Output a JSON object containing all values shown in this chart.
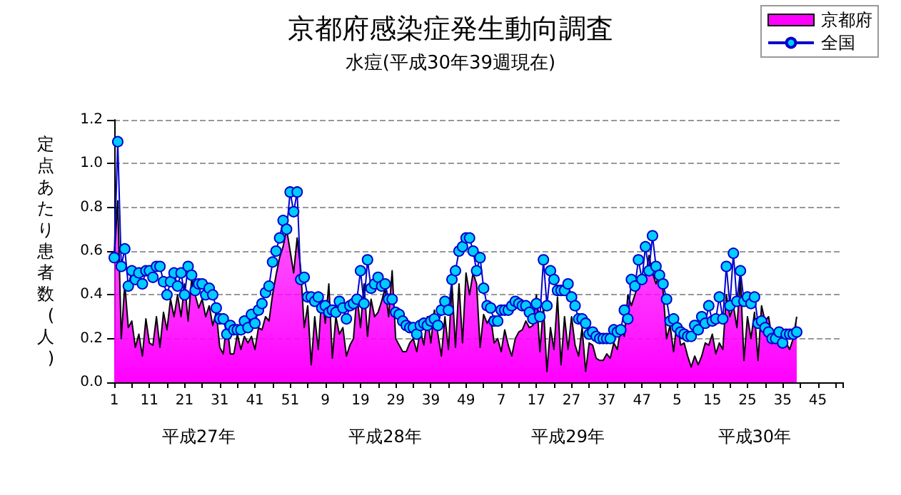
{
  "chart_data": {
    "type": "area",
    "title": "京都府感染症発生動向調査",
    "subtitle": "水痘(平成30年39週現在)",
    "ylabel": "定点あたり患者数(人)",
    "annotations": [
      "平成27年",
      "平成28年",
      "平成29年",
      "平成30年"
    ],
    "categories": [
      "1",
      null,
      null,
      null,
      null,
      null,
      null,
      null,
      null,
      null,
      "11",
      null,
      null,
      null,
      null,
      null,
      null,
      null,
      null,
      null,
      "21",
      null,
      null,
      null,
      null,
      null,
      null,
      null,
      null,
      null,
      "31",
      null,
      null,
      null,
      null,
      null,
      null,
      null,
      null,
      null,
      "41",
      null,
      null,
      null,
      null,
      null,
      null,
      null,
      null,
      null,
      "51",
      null,
      null,
      null,
      null,
      null,
      null,
      null,
      null,
      null,
      "9",
      null,
      null,
      null,
      null,
      null,
      null,
      null,
      null,
      null,
      "19",
      null,
      null,
      null,
      null,
      null,
      null,
      null,
      null,
      null,
      "29",
      null,
      null,
      null,
      null,
      null,
      null,
      null,
      null,
      null,
      "39",
      null,
      null,
      null,
      null,
      null,
      null,
      null,
      null,
      null,
      "49",
      null,
      null,
      null,
      null,
      null,
      null,
      null,
      null,
      null,
      "7",
      null,
      null,
      null,
      null,
      null,
      null,
      null,
      null,
      null,
      "17",
      null,
      null,
      null,
      null,
      null,
      null,
      null,
      null,
      null,
      "27",
      null,
      null,
      null,
      null,
      null,
      null,
      null,
      null,
      null,
      "37",
      null,
      null,
      null,
      null,
      null,
      null,
      null,
      null,
      null,
      "47",
      null,
      null,
      null,
      null,
      null,
      null,
      null,
      null,
      null,
      "5",
      null,
      null,
      null,
      null,
      null,
      null,
      null,
      null,
      null,
      "15",
      null,
      null,
      null,
      null,
      null,
      null,
      null,
      null,
      null,
      "25",
      null,
      null,
      null,
      null,
      null,
      null,
      null,
      null,
      null,
      "35",
      null,
      null,
      null,
      null,
      null,
      null,
      null,
      null,
      null,
      "45",
      null,
      null,
      null,
      null,
      null,
      null,
      null
    ],
    "series": [
      {
        "name": "京都府",
        "color": "#ff00ff",
        "values": [
          0.57,
          0.83,
          0.2,
          0.45,
          0.25,
          0.28,
          0.16,
          0.22,
          0.12,
          0.29,
          0.18,
          0.17,
          0.3,
          0.16,
          0.32,
          0.24,
          0.38,
          0.3,
          0.4,
          0.3,
          0.45,
          0.28,
          0.47,
          0.4,
          0.34,
          0.38,
          0.3,
          0.35,
          0.26,
          0.32,
          0.16,
          0.13,
          0.28,
          0.13,
          0.13,
          0.22,
          0.15,
          0.21,
          0.18,
          0.21,
          0.15,
          0.25,
          0.24,
          0.3,
          0.28,
          0.4,
          0.49,
          0.57,
          0.62,
          0.7,
          0.6,
          0.5,
          0.66,
          0.52,
          0.25,
          0.35,
          0.08,
          0.3,
          0.15,
          0.4,
          0.27,
          0.45,
          0.11,
          0.3,
          0.22,
          0.25,
          0.12,
          0.17,
          0.2,
          0.4,
          0.25,
          0.45,
          0.21,
          0.38,
          0.3,
          0.32,
          0.37,
          0.43,
          0.3,
          0.51,
          0.2,
          0.17,
          0.14,
          0.14,
          0.18,
          0.2,
          0.14,
          0.24,
          0.17,
          0.3,
          0.18,
          0.33,
          0.22,
          0.12,
          0.3,
          0.15,
          0.45,
          0.16,
          0.45,
          0.18,
          0.5,
          0.4,
          0.5,
          0.45,
          0.16,
          0.31,
          0.27,
          0.3,
          0.18,
          0.2,
          0.14,
          0.24,
          0.17,
          0.12,
          0.2,
          0.23,
          0.24,
          0.28,
          0.25,
          0.26,
          0.4,
          0.14,
          0.35,
          0.05,
          0.25,
          0.15,
          0.39,
          0.08,
          0.3,
          0.15,
          0.3,
          0.17,
          0.12,
          0.25,
          0.05,
          0.18,
          0.17,
          0.11,
          0.1,
          0.1,
          0.13,
          0.11,
          0.18,
          0.15,
          0.25,
          0.21,
          0.4,
          0.35,
          0.4,
          0.45,
          0.47,
          0.48,
          0.58,
          0.5,
          0.45,
          0.5,
          0.42,
          0.2,
          0.26,
          0.14,
          0.28,
          0.17,
          0.18,
          0.12,
          0.07,
          0.12,
          0.08,
          0.12,
          0.18,
          0.17,
          0.22,
          0.13,
          0.18,
          0.15,
          0.4,
          0.3,
          0.35,
          0.25,
          0.48,
          0.1,
          0.3,
          0.2,
          0.32,
          0.1,
          0.35,
          0.28,
          0.3,
          0.2,
          0.23,
          0.25,
          0.2,
          0.18,
          0.15,
          0.2,
          0.3,
          null,
          null,
          null,
          null,
          null,
          null,
          null,
          null,
          null,
          null,
          null,
          null,
          null
        ]
      },
      {
        "name": "全国",
        "type": "line",
        "marker": "circle",
        "color": "#0000cc",
        "values": [
          0.57,
          1.1,
          0.53,
          0.61,
          0.44,
          0.51,
          0.47,
          0.5,
          0.45,
          0.51,
          0.51,
          0.48,
          0.53,
          0.53,
          0.46,
          0.4,
          0.46,
          0.5,
          0.44,
          0.5,
          0.4,
          0.53,
          0.49,
          0.42,
          0.45,
          0.45,
          0.4,
          0.43,
          0.4,
          0.34,
          0.29,
          0.29,
          0.22,
          0.26,
          0.24,
          0.24,
          0.24,
          0.28,
          0.25,
          0.31,
          0.27,
          0.33,
          0.36,
          0.41,
          0.44,
          0.55,
          0.6,
          0.66,
          0.74,
          0.7,
          0.87,
          0.78,
          0.87,
          0.47,
          0.48,
          0.39,
          0.39,
          0.37,
          0.39,
          0.34,
          0.35,
          0.32,
          0.33,
          0.32,
          0.37,
          0.34,
          0.29,
          0.35,
          0.36,
          0.38,
          0.51,
          0.36,
          0.56,
          0.43,
          0.45,
          0.48,
          0.44,
          0.45,
          0.38,
          0.38,
          0.32,
          0.31,
          0.28,
          0.26,
          0.25,
          0.25,
          0.22,
          0.26,
          0.27,
          0.26,
          0.28,
          0.29,
          0.26,
          0.33,
          0.37,
          0.33,
          0.47,
          0.51,
          0.6,
          0.62,
          0.66,
          0.66,
          0.6,
          0.51,
          0.57,
          0.43,
          0.35,
          0.34,
          0.28,
          0.28,
          0.33,
          0.33,
          0.33,
          0.35,
          0.37,
          0.36,
          0.35,
          0.35,
          0.32,
          0.29,
          0.36,
          0.3,
          0.56,
          0.35,
          0.51,
          0.47,
          0.42,
          0.42,
          0.42,
          0.45,
          0.39,
          0.35,
          0.29,
          0.29,
          0.27,
          0.22,
          0.23,
          0.21,
          0.2,
          0.2,
          0.2,
          0.2,
          0.24,
          0.23,
          0.24,
          0.33,
          0.29,
          0.47,
          0.44,
          0.56,
          0.47,
          0.62,
          0.51,
          0.67,
          0.53,
          0.49,
          0.45,
          0.38,
          0.28,
          0.29,
          0.25,
          0.23,
          0.22,
          0.21,
          0.21,
          0.26,
          0.24,
          0.3,
          0.27,
          0.35,
          0.28,
          0.29,
          0.39,
          0.29,
          0.53,
          0.35,
          0.59,
          0.37,
          0.51,
          0.37,
          0.39,
          0.36,
          0.39,
          0.27,
          0.28,
          0.25,
          0.23,
          0.2,
          0.2,
          0.23,
          0.18,
          0.22,
          0.22,
          0.22,
          0.23,
          null,
          null,
          null,
          null,
          null,
          null,
          null,
          null,
          null,
          null,
          null,
          null,
          null
        ]
      }
    ],
    "ylim": [
      0,
      1.2
    ],
    "yticks": [
      {
        "value": 0,
        "label": "0.0"
      },
      {
        "value": 0.2,
        "label": "0.2"
      },
      {
        "value": 0.4,
        "label": "0.4"
      },
      {
        "value": 0.6,
        "label": "0.6"
      },
      {
        "value": 0.8,
        "label": "0.8"
      },
      {
        "value": 1.0,
        "label": "1.0"
      },
      {
        "value": 1.2,
        "label": "1.2"
      }
    ],
    "grid": "y",
    "legend": "top right"
  }
}
